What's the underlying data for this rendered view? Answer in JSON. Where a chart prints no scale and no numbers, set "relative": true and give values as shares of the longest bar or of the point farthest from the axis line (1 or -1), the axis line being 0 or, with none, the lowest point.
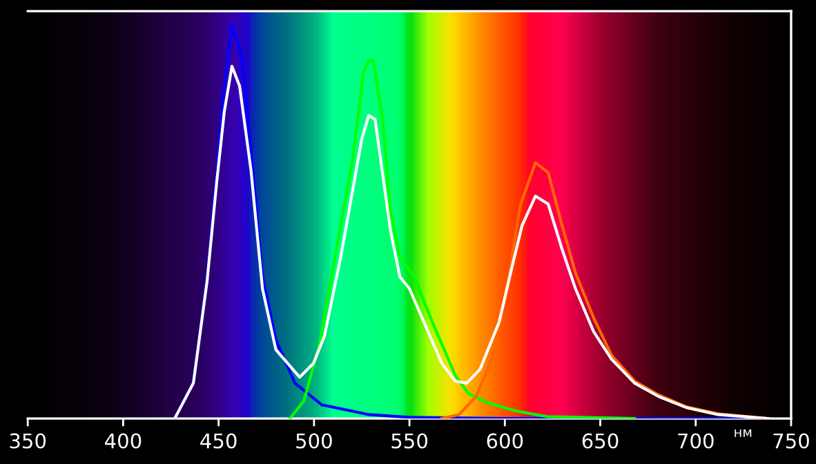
{
  "chart_data": {
    "type": "line",
    "relative": true,
    "xlabel": "нм",
    "xlim": [
      350,
      750
    ],
    "xticks": [
      350,
      400,
      450,
      500,
      550,
      600,
      650,
      700,
      750
    ],
    "grid": false,
    "series": [
      {
        "color": "#ffffff",
        "x": [
          427,
          436.8,
          444,
          449,
          453,
          457,
          461,
          467,
          473,
          480,
          492.5,
          499.7,
          505.5,
          514,
          521,
          525,
          528.7,
          532,
          536,
          540,
          545,
          550,
          557.6,
          567,
          574,
          580,
          587,
          597,
          603,
          609,
          616,
          622.7,
          630,
          637,
          646.6,
          656,
          668,
          680.6,
          695,
          711.7,
          738
        ],
        "values": [
          0,
          0.09,
          0.35,
          0.6,
          0.78,
          0.895,
          0.845,
          0.63,
          0.33,
          0.175,
          0.105,
          0.14,
          0.21,
          0.41,
          0.6,
          0.71,
          0.77,
          0.76,
          0.62,
          0.48,
          0.36,
          0.33,
          0.245,
          0.14,
          0.095,
          0.09,
          0.125,
          0.245,
          0.37,
          0.49,
          0.565,
          0.545,
          0.43,
          0.33,
          0.22,
          0.15,
          0.09,
          0.056,
          0.028,
          0.01,
          0
        ]
      },
      {
        "color": "#0000ff",
        "x": [
          427,
          436.8,
          444,
          449,
          452.7,
          457,
          462,
          467,
          473,
          480,
          490,
          504,
          528.7,
          550,
          600,
          650,
          700,
          735
        ],
        "values": [
          0,
          0.09,
          0.36,
          0.62,
          0.83,
          1.0,
          0.92,
          0.68,
          0.36,
          0.2,
          0.09,
          0.035,
          0.01,
          0.003,
          0,
          0,
          0,
          0
        ]
      },
      {
        "color": "#00ff00",
        "x": [
          487.4,
          494.7,
          503,
          511,
          520,
          526,
          528.7,
          531,
          536,
          540,
          545,
          552.5,
          562,
          574,
          581,
          591,
          605,
          622,
          668
        ],
        "values": [
          0,
          0.045,
          0.19,
          0.41,
          0.65,
          0.88,
          0.91,
          0.91,
          0.76,
          0.53,
          0.41,
          0.36,
          0.245,
          0.11,
          0.063,
          0.04,
          0.02,
          0.005,
          0
        ]
      },
      {
        "color": "#ff6600",
        "x": [
          567,
          576,
          585,
          594,
          601,
          608,
          616,
          622.7,
          630,
          637,
          646.6,
          656,
          668,
          680.6,
          695,
          711.7,
          738
        ],
        "values": [
          0,
          0.01,
          0.056,
          0.16,
          0.33,
          0.54,
          0.65,
          0.625,
          0.49,
          0.37,
          0.255,
          0.16,
          0.095,
          0.06,
          0.03,
          0.012,
          0
        ]
      }
    ]
  }
}
